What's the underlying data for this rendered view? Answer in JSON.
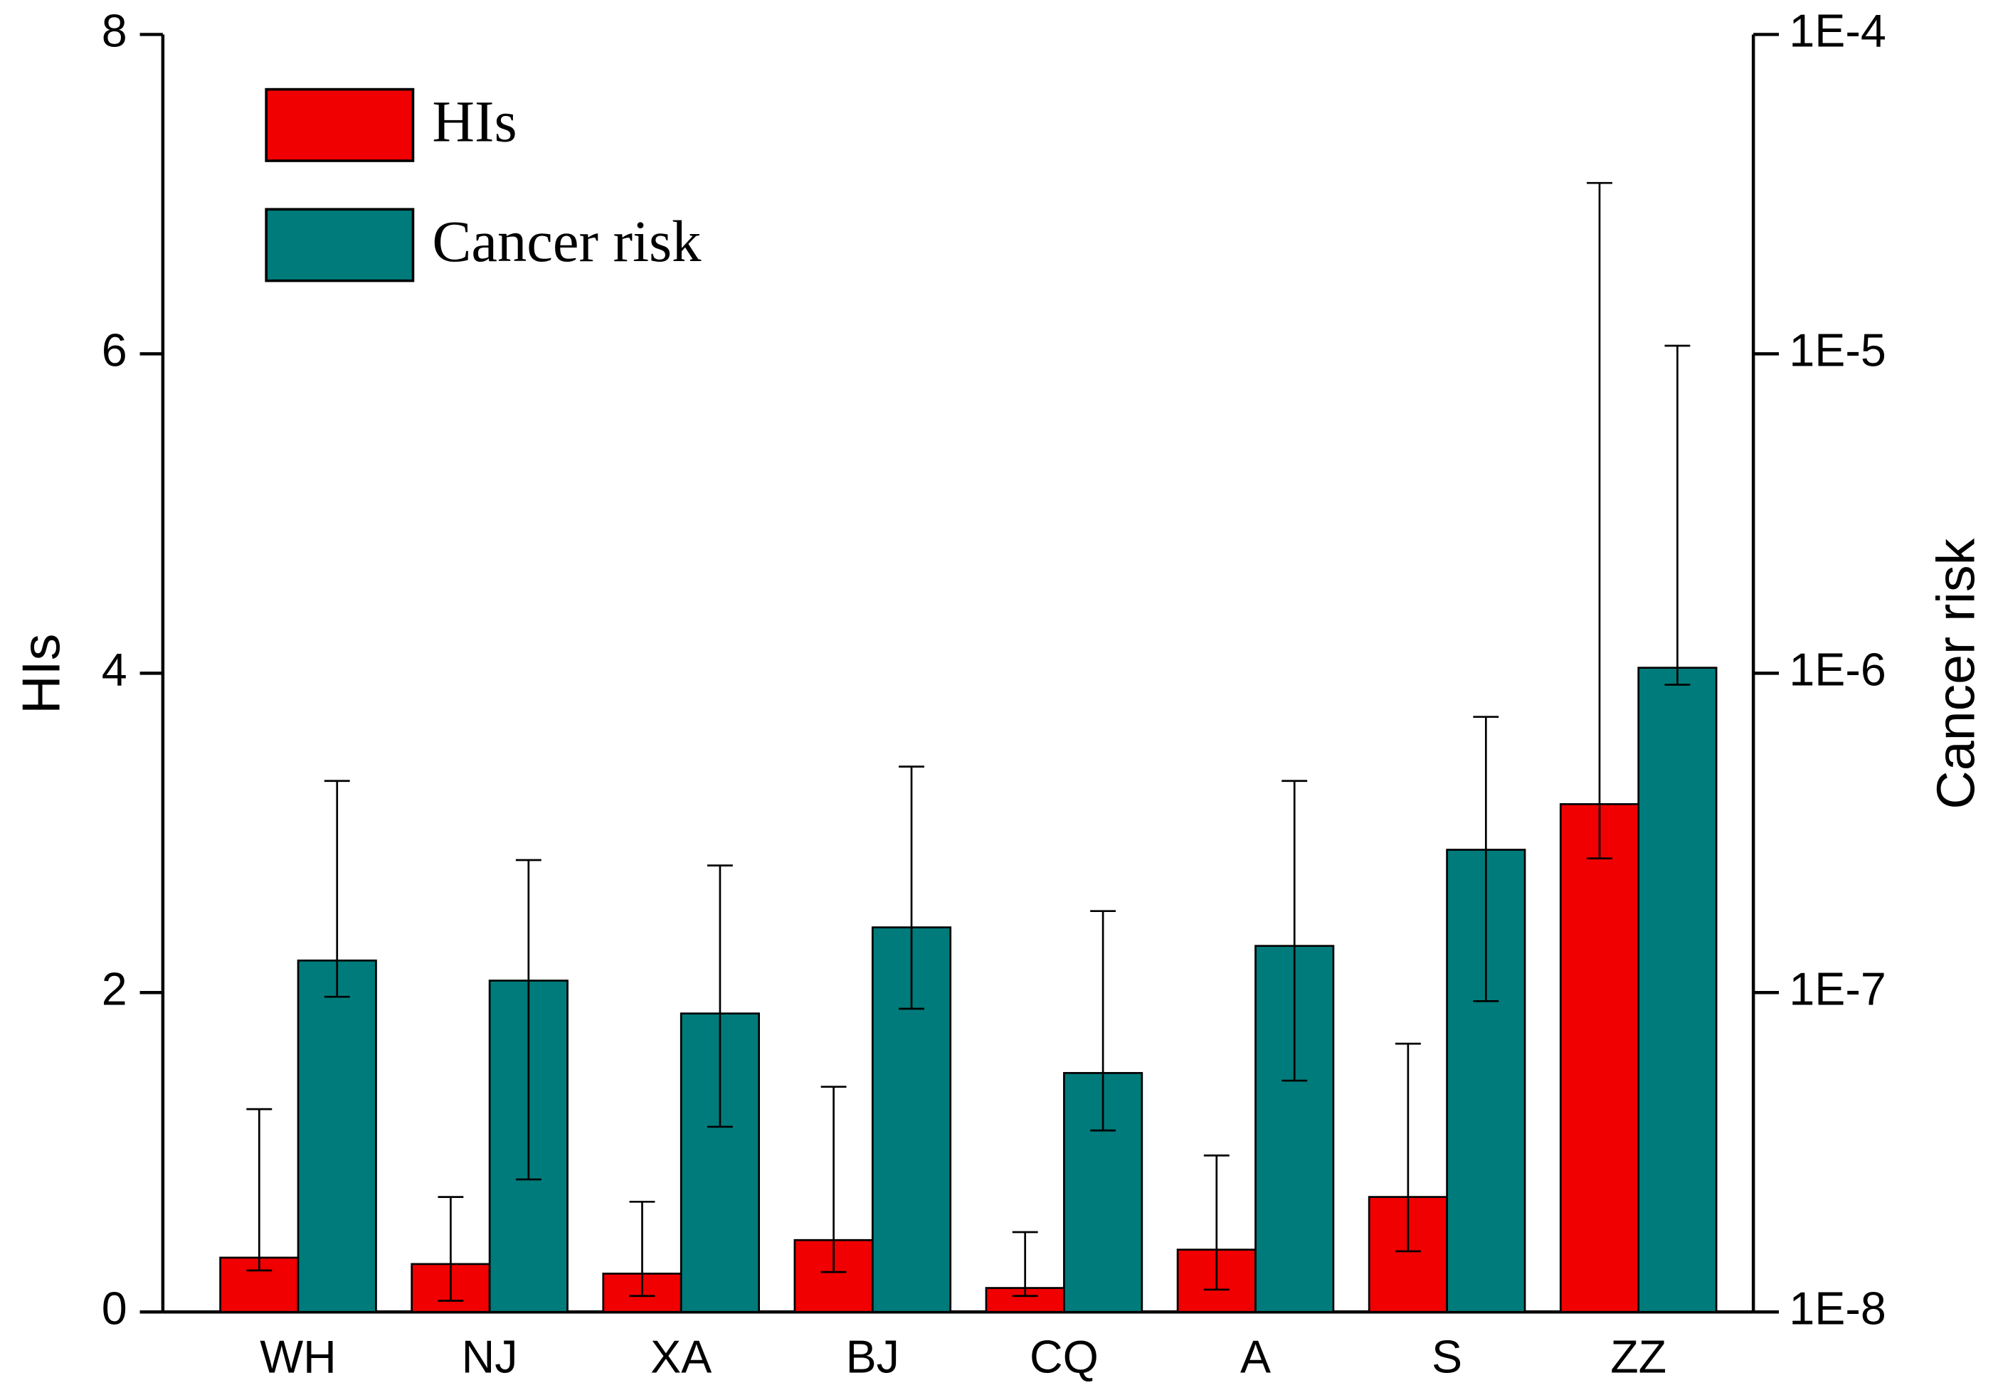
{
  "chart_data": {
    "type": "bar",
    "y_label": "HIs",
    "y2_label": "Cancer risk",
    "categories": [
      "WH",
      "NJ",
      "XA",
      "BJ",
      "CQ",
      "A",
      "S",
      "ZZ"
    ],
    "series": [
      {
        "name": "HIs",
        "color": "#f00000",
        "values": [
          0.34,
          0.3,
          0.24,
          0.45,
          0.15,
          0.39,
          0.72,
          3.18
        ],
        "upper": [
          1.27,
          0.72,
          0.69,
          1.41,
          0.5,
          0.98,
          1.68,
          7.07
        ],
        "lower": [
          0.26,
          0.07,
          0.1,
          0.25,
          0.1,
          0.14,
          0.38,
          2.84
        ]
      },
      {
        "name": "Cancer risk",
        "color": "#007b7b",
        "axis": "y2",
        "values": [
          1.26e-07,
          1.09e-07,
          8.6e-08,
          1.6e-07,
          5.6e-08,
          1.4e-07,
          2.8e-07,
          1.04e-06
        ],
        "upper": [
          4.6e-07,
          2.6e-07,
          2.5e-07,
          5.1e-07,
          1.8e-07,
          4.6e-07,
          7.3e-07,
          1.06e-05
        ],
        "lower": [
          9.7e-08,
          2.6e-08,
          3.8e-08,
          8.9e-08,
          3.7e-08,
          5.3e-08,
          9.4e-08,
          9.2e-07
        ]
      }
    ],
    "ylim": [
      0,
      8
    ],
    "yticks": [
      0,
      2,
      4,
      6,
      8
    ],
    "y2lim": [
      1e-08,
      0.0001
    ],
    "y2scale": "log",
    "y2ticks": [
      {
        "value": 1e-08,
        "label": "1E-8"
      },
      {
        "value": 1e-07,
        "label": "1E-7"
      },
      {
        "value": 1e-06,
        "label": "1E-6"
      },
      {
        "value": 1e-05,
        "label": "1E-5"
      },
      {
        "value": 0.0001,
        "label": "1E-4"
      }
    ],
    "legend": "upper-left"
  }
}
